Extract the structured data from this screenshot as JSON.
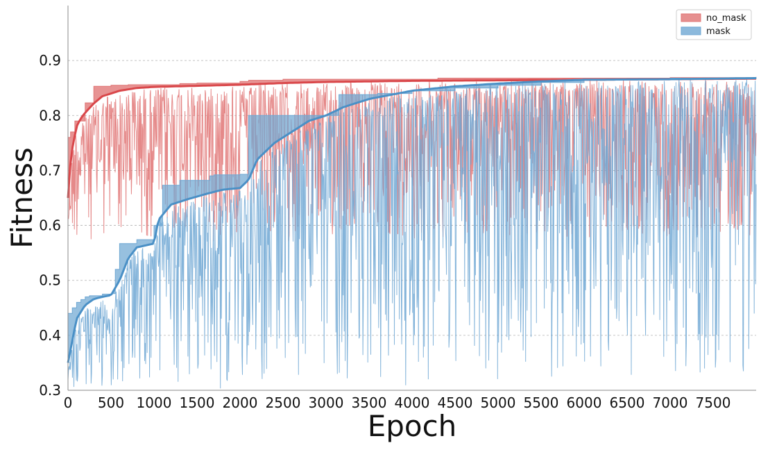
{
  "chart_data": {
    "type": "line",
    "title": "",
    "xlabel": "Epoch",
    "ylabel": "Fitness",
    "xlim": [
      0,
      8000
    ],
    "ylim": [
      0.3,
      1.0
    ],
    "x_ticks": [
      0,
      500,
      1000,
      1500,
      2000,
      2500,
      3000,
      3500,
      4000,
      4500,
      5000,
      5500,
      6000,
      6500,
      7000,
      7500
    ],
    "y_ticks": [
      0.3,
      0.4,
      0.5,
      0.6,
      0.7,
      0.8,
      0.9
    ],
    "grid": "horizontal dashed",
    "legend_position": "top-right",
    "series": [
      {
        "name": "no_mask",
        "color": "#d62728",
        "fill_color": "#e07474",
        "mean_line_color": "#d9474a",
        "max_fitness": {
          "x": [
            0,
            30,
            80,
            200,
            300,
            500,
            700,
            1000,
            1300,
            1500,
            2000,
            2100,
            2500,
            3000,
            3500,
            4300,
            5000,
            6000,
            7000,
            8000
          ],
          "y": [
            0.76,
            0.77,
            0.79,
            0.823,
            0.853,
            0.855,
            0.856,
            0.856,
            0.858,
            0.859,
            0.862,
            0.864,
            0.866,
            0.866,
            0.866,
            0.868,
            0.868,
            0.868,
            0.869,
            0.87
          ]
        },
        "mean_fitness": {
          "x": [
            0,
            20,
            50,
            100,
            150,
            200,
            300,
            400,
            600,
            800,
            1000,
            1500,
            2000,
            2500,
            3000,
            4000,
            5000,
            6000,
            7000,
            8000
          ],
          "y": [
            0.65,
            0.7,
            0.74,
            0.78,
            0.795,
            0.805,
            0.822,
            0.835,
            0.845,
            0.85,
            0.852,
            0.854,
            0.856,
            0.859,
            0.861,
            0.863,
            0.864,
            0.865,
            0.866,
            0.867
          ]
        },
        "population_min_range": [
          0.57,
          0.8
        ]
      },
      {
        "name": "mask",
        "color": "#1f77b4",
        "fill_color": "#6fa7d3",
        "mean_line_color": "#4a90c6",
        "max_fitness": {
          "x": [
            0,
            50,
            100,
            150,
            200,
            250,
            400,
            500,
            550,
            600,
            800,
            1000,
            1100,
            1300,
            1650,
            1700,
            2000,
            2100,
            2350,
            2600,
            3000,
            3150,
            3600,
            4000,
            4500,
            5000,
            5500,
            6000,
            7000,
            8000
          ],
          "y": [
            0.44,
            0.45,
            0.46,
            0.465,
            0.47,
            0.472,
            0.475,
            0.476,
            0.52,
            0.567,
            0.574,
            0.6,
            0.673,
            0.682,
            0.69,
            0.692,
            0.693,
            0.8,
            0.8,
            0.8,
            0.8,
            0.838,
            0.84,
            0.845,
            0.85,
            0.855,
            0.86,
            0.865,
            0.868,
            0.87
          ]
        },
        "mean_fitness": {
          "x": [
            0,
            100,
            200,
            300,
            400,
            500,
            600,
            700,
            800,
            1000,
            1050,
            1200,
            1400,
            1600,
            1800,
            2000,
            2100,
            2200,
            2400,
            2600,
            2800,
            3000,
            3200,
            3500,
            4000,
            4500,
            5000,
            5500,
            6000,
            7000,
            8000
          ],
          "y": [
            0.35,
            0.43,
            0.455,
            0.466,
            0.47,
            0.473,
            0.5,
            0.54,
            0.56,
            0.567,
            0.61,
            0.638,
            0.648,
            0.657,
            0.665,
            0.668,
            0.683,
            0.72,
            0.75,
            0.77,
            0.79,
            0.8,
            0.815,
            0.83,
            0.845,
            0.853,
            0.858,
            0.862,
            0.865,
            0.866,
            0.868
          ]
        },
        "population_min_range": [
          0.3,
          0.8
        ]
      }
    ]
  }
}
